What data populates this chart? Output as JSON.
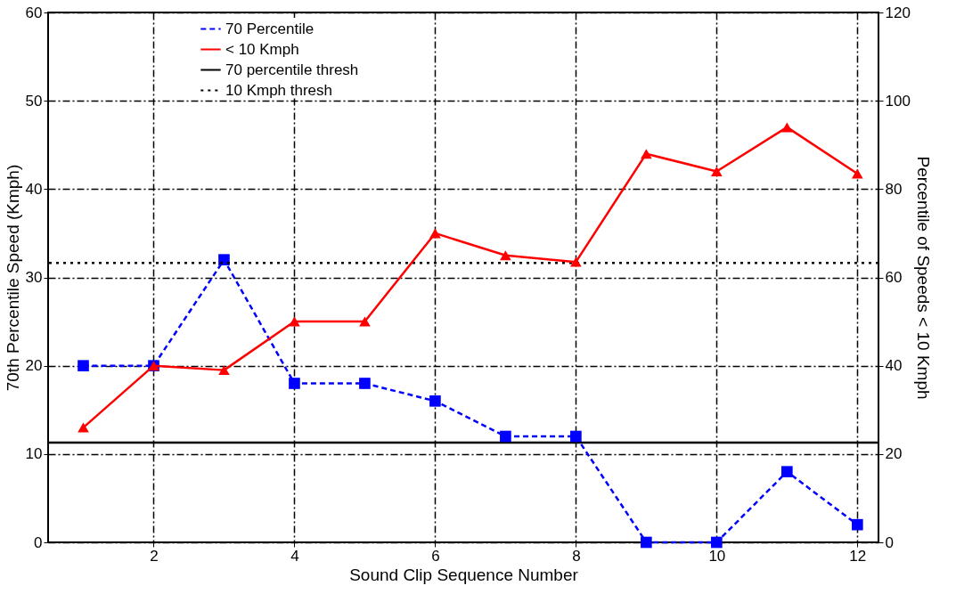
{
  "chart_data": {
    "type": "line",
    "xlabel": "Sound Clip Sequence Number",
    "ylabel": "70th Percentile Speed (Kmph)",
    "y2label": "Percentile of Speeds < 10 Kmph",
    "x": [
      1,
      2,
      3,
      4,
      5,
      6,
      7,
      8,
      9,
      10,
      11,
      12
    ],
    "series": [
      {
        "name": "70 Percentile",
        "color": "#0000ff",
        "marker": "square",
        "line_style": "dashed",
        "values": [
          20,
          20,
          32,
          18,
          18,
          16,
          12,
          12,
          0,
          0,
          8,
          2
        ]
      },
      {
        "name": "< 10 Kmph",
        "color": "#ff0000",
        "marker": "triangle",
        "line_style": "solid",
        "axis": "y2",
        "values": [
          26,
          40,
          39,
          50,
          50,
          70,
          65,
          63.5,
          88,
          84,
          94,
          83.5
        ]
      }
    ],
    "ref_lines": [
      {
        "axis": "y",
        "value": 11.3,
        "label": "70 percentile thresh",
        "color": "#000000",
        "line_style": "solid"
      },
      {
        "axis": "y2",
        "value": 63.3,
        "label": "10 Kmph thresh",
        "color": "#000000",
        "line_style": "dotted"
      }
    ],
    "xlim": [
      0.5,
      12.3
    ],
    "xticks": [
      2,
      4,
      6,
      8,
      10,
      12
    ],
    "ylim": [
      0,
      60
    ],
    "yticks": [
      0,
      10,
      20,
      30,
      40,
      50,
      60
    ],
    "y2lim": [
      0,
      120
    ],
    "y2ticks": [
      0,
      20,
      40,
      60,
      80,
      100,
      120
    ],
    "grid": true,
    "legend": "top"
  }
}
